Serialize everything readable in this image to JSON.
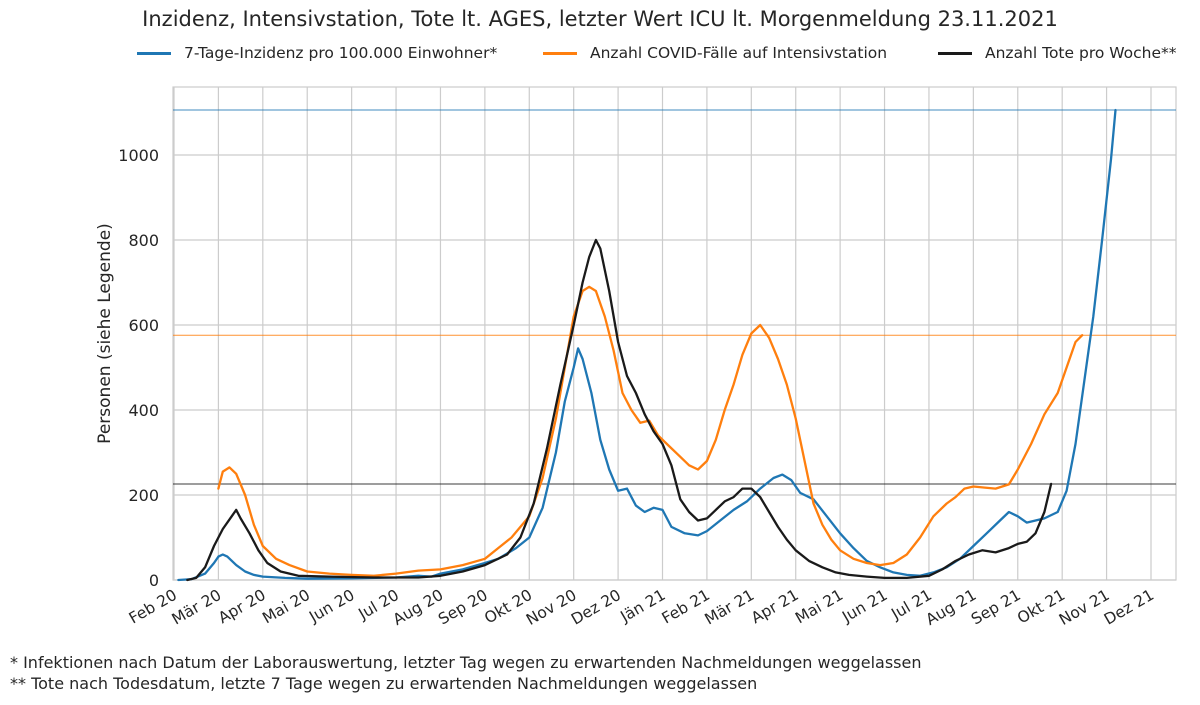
{
  "chart_data": {
    "type": "line",
    "title": "Inzidenz, Intensivstation, Tote lt. AGES, letzter Wert ICU lt. Morgenmeldung 23.11.2021",
    "ylabel": "Personen (siehe Legende)",
    "xlabel": "",
    "ylim": [
      0,
      1160
    ],
    "yticks": [
      0,
      200,
      400,
      600,
      800,
      1000
    ],
    "xticks": [
      "Feb 20",
      "Mär 20",
      "Apr 20",
      "Mai 20",
      "Jun 20",
      "Jul 20",
      "Aug 20",
      "Sep 20",
      "Okt 20",
      "Nov 20",
      "Dez 20",
      "Jän 21",
      "Feb 21",
      "Mär 21",
      "Apr 21",
      "Mai 21",
      "Jun 21",
      "Jul 21",
      "Aug 21",
      "Sep 21",
      "Okt 21",
      "Nov 21",
      "Dez 21"
    ],
    "grid": true,
    "legend_position": "top",
    "series": [
      {
        "name": "7-Tage-Inzidenz pro 100.000 Einwohner*",
        "color": "#1f77b4",
        "reference_line": 1106,
        "points": [
          [
            0.1,
            0
          ],
          [
            0.4,
            2
          ],
          [
            0.7,
            15
          ],
          [
            0.9,
            40
          ],
          [
            1.0,
            55
          ],
          [
            1.1,
            60
          ],
          [
            1.2,
            55
          ],
          [
            1.4,
            35
          ],
          [
            1.6,
            20
          ],
          [
            1.8,
            12
          ],
          [
            2.0,
            8
          ],
          [
            2.5,
            5
          ],
          [
            3.0,
            3
          ],
          [
            4.0,
            4
          ],
          [
            5.0,
            6
          ],
          [
            5.5,
            10
          ],
          [
            5.8,
            8
          ],
          [
            6.0,
            15
          ],
          [
            6.5,
            25
          ],
          [
            7.0,
            40
          ],
          [
            7.3,
            50
          ],
          [
            7.7,
            75
          ],
          [
            8.0,
            100
          ],
          [
            8.3,
            170
          ],
          [
            8.6,
            300
          ],
          [
            8.8,
            420
          ],
          [
            9.0,
            500
          ],
          [
            9.1,
            545
          ],
          [
            9.2,
            520
          ],
          [
            9.4,
            440
          ],
          [
            9.6,
            330
          ],
          [
            9.8,
            260
          ],
          [
            10.0,
            210
          ],
          [
            10.2,
            215
          ],
          [
            10.4,
            175
          ],
          [
            10.6,
            160
          ],
          [
            10.8,
            170
          ],
          [
            11.0,
            165
          ],
          [
            11.2,
            125
          ],
          [
            11.5,
            110
          ],
          [
            11.8,
            105
          ],
          [
            12.0,
            115
          ],
          [
            12.3,
            140
          ],
          [
            12.6,
            165
          ],
          [
            12.9,
            185
          ],
          [
            13.2,
            215
          ],
          [
            13.5,
            240
          ],
          [
            13.7,
            248
          ],
          [
            13.9,
            235
          ],
          [
            14.1,
            205
          ],
          [
            14.4,
            190
          ],
          [
            14.7,
            150
          ],
          [
            15.0,
            110
          ],
          [
            15.3,
            75
          ],
          [
            15.6,
            45
          ],
          [
            15.9,
            30
          ],
          [
            16.2,
            18
          ],
          [
            16.5,
            12
          ],
          [
            16.8,
            10
          ],
          [
            17.1,
            18
          ],
          [
            17.4,
            30
          ],
          [
            17.7,
            50
          ],
          [
            18.0,
            80
          ],
          [
            18.3,
            110
          ],
          [
            18.6,
            140
          ],
          [
            18.8,
            160
          ],
          [
            19.0,
            150
          ],
          [
            19.2,
            135
          ],
          [
            19.4,
            140
          ],
          [
            19.6,
            145
          ],
          [
            19.9,
            160
          ],
          [
            20.1,
            210
          ],
          [
            20.3,
            320
          ],
          [
            20.5,
            470
          ],
          [
            20.7,
            620
          ],
          [
            20.9,
            800
          ],
          [
            21.1,
            990
          ],
          [
            21.2,
            1106
          ]
        ]
      },
      {
        "name": "Anzahl COVID-Fälle auf Intensivstation",
        "color": "#ff7f0e",
        "reference_line": 576,
        "points": [
          [
            1.0,
            215
          ],
          [
            1.1,
            255
          ],
          [
            1.25,
            265
          ],
          [
            1.4,
            250
          ],
          [
            1.6,
            200
          ],
          [
            1.8,
            130
          ],
          [
            2.0,
            80
          ],
          [
            2.3,
            50
          ],
          [
            2.6,
            35
          ],
          [
            3.0,
            20
          ],
          [
            3.5,
            15
          ],
          [
            4.0,
            12
          ],
          [
            4.5,
            10
          ],
          [
            5.0,
            15
          ],
          [
            5.5,
            22
          ],
          [
            6.0,
            25
          ],
          [
            6.5,
            35
          ],
          [
            7.0,
            50
          ],
          [
            7.3,
            75
          ],
          [
            7.6,
            100
          ],
          [
            8.0,
            150
          ],
          [
            8.3,
            240
          ],
          [
            8.6,
            380
          ],
          [
            8.8,
            500
          ],
          [
            9.0,
            620
          ],
          [
            9.2,
            680
          ],
          [
            9.35,
            690
          ],
          [
            9.5,
            680
          ],
          [
            9.7,
            620
          ],
          [
            9.9,
            540
          ],
          [
            10.1,
            440
          ],
          [
            10.3,
            400
          ],
          [
            10.5,
            370
          ],
          [
            10.7,
            375
          ],
          [
            10.9,
            340
          ],
          [
            11.1,
            320
          ],
          [
            11.4,
            290
          ],
          [
            11.6,
            270
          ],
          [
            11.8,
            260
          ],
          [
            12.0,
            280
          ],
          [
            12.2,
            330
          ],
          [
            12.4,
            400
          ],
          [
            12.6,
            460
          ],
          [
            12.8,
            530
          ],
          [
            13.0,
            580
          ],
          [
            13.2,
            600
          ],
          [
            13.4,
            570
          ],
          [
            13.6,
            520
          ],
          [
            13.8,
            460
          ],
          [
            14.0,
            380
          ],
          [
            14.2,
            280
          ],
          [
            14.4,
            180
          ],
          [
            14.6,
            130
          ],
          [
            14.8,
            95
          ],
          [
            15.0,
            70
          ],
          [
            15.3,
            50
          ],
          [
            15.6,
            40
          ],
          [
            15.9,
            35
          ],
          [
            16.2,
            40
          ],
          [
            16.5,
            60
          ],
          [
            16.8,
            100
          ],
          [
            17.1,
            150
          ],
          [
            17.4,
            180
          ],
          [
            17.6,
            195
          ],
          [
            17.8,
            215
          ],
          [
            18.0,
            220
          ],
          [
            18.2,
            218
          ],
          [
            18.5,
            215
          ],
          [
            18.8,
            225
          ],
          [
            19.0,
            260
          ],
          [
            19.3,
            320
          ],
          [
            19.6,
            390
          ],
          [
            19.9,
            440
          ],
          [
            20.1,
            500
          ],
          [
            20.3,
            560
          ],
          [
            20.45,
            576
          ]
        ]
      },
      {
        "name": "Anzahl Tote pro Woche**",
        "color": "#1a1a1a",
        "reference_line": 226,
        "points": [
          [
            0.3,
            0
          ],
          [
            0.5,
            5
          ],
          [
            0.7,
            30
          ],
          [
            0.9,
            80
          ],
          [
            1.1,
            120
          ],
          [
            1.3,
            150
          ],
          [
            1.4,
            165
          ],
          [
            1.5,
            145
          ],
          [
            1.7,
            110
          ],
          [
            1.9,
            70
          ],
          [
            2.1,
            40
          ],
          [
            2.4,
            20
          ],
          [
            2.8,
            10
          ],
          [
            3.5,
            8
          ],
          [
            4.5,
            6
          ],
          [
            5.5,
            6
          ],
          [
            6.0,
            10
          ],
          [
            6.5,
            20
          ],
          [
            7.0,
            35
          ],
          [
            7.5,
            60
          ],
          [
            7.8,
            100
          ],
          [
            8.1,
            180
          ],
          [
            8.4,
            310
          ],
          [
            8.7,
            460
          ],
          [
            9.0,
            600
          ],
          [
            9.2,
            700
          ],
          [
            9.35,
            760
          ],
          [
            9.5,
            800
          ],
          [
            9.6,
            780
          ],
          [
            9.8,
            680
          ],
          [
            10.0,
            560
          ],
          [
            10.2,
            480
          ],
          [
            10.4,
            440
          ],
          [
            10.6,
            390
          ],
          [
            10.8,
            350
          ],
          [
            11.0,
            320
          ],
          [
            11.2,
            270
          ],
          [
            11.4,
            190
          ],
          [
            11.6,
            160
          ],
          [
            11.8,
            140
          ],
          [
            12.0,
            145
          ],
          [
            12.2,
            165
          ],
          [
            12.4,
            185
          ],
          [
            12.6,
            195
          ],
          [
            12.8,
            215
          ],
          [
            13.0,
            215
          ],
          [
            13.2,
            195
          ],
          [
            13.4,
            160
          ],
          [
            13.6,
            125
          ],
          [
            13.8,
            95
          ],
          [
            14.0,
            70
          ],
          [
            14.3,
            45
          ],
          [
            14.6,
            30
          ],
          [
            14.9,
            18
          ],
          [
            15.2,
            12
          ],
          [
            15.6,
            8
          ],
          [
            16.0,
            5
          ],
          [
            16.5,
            5
          ],
          [
            17.0,
            10
          ],
          [
            17.3,
            25
          ],
          [
            17.6,
            45
          ],
          [
            17.9,
            60
          ],
          [
            18.2,
            70
          ],
          [
            18.5,
            65
          ],
          [
            18.8,
            75
          ],
          [
            19.0,
            85
          ],
          [
            19.2,
            90
          ],
          [
            19.4,
            110
          ],
          [
            19.6,
            160
          ],
          [
            19.75,
            226
          ]
        ]
      }
    ]
  },
  "footnotes": [
    "* Infektionen nach Datum der Laborauswertung, letzter Tag wegen zu erwartenden Nachmeldungen weggelassen",
    "** Tote nach Todesdatum, letzte 7 Tage wegen zu erwartenden Nachmeldungen weggelassen"
  ]
}
